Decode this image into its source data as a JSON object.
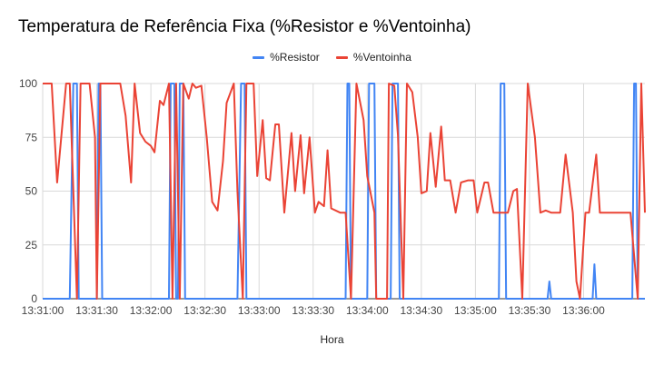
{
  "chart_data": {
    "type": "line",
    "title": "Temperatura de Referência Fixa (%Resistor e %Ventoinha)",
    "xlabel": "Hora",
    "ylabel": "",
    "ylim": [
      0,
      100
    ],
    "yticks": [
      0,
      25,
      50,
      75,
      100
    ],
    "xlim": [
      0,
      334
    ],
    "xticks": [
      {
        "t": 0,
        "label": "13:31:00"
      },
      {
        "t": 30,
        "label": "13:31:30"
      },
      {
        "t": 60,
        "label": "13:32:00"
      },
      {
        "t": 90,
        "label": "13:32:30"
      },
      {
        "t": 120,
        "label": "13:33:00"
      },
      {
        "t": 150,
        "label": "13:33:30"
      },
      {
        "t": 180,
        "label": "13:34:00"
      },
      {
        "t": 210,
        "label": "13:34:30"
      },
      {
        "t": 240,
        "label": "13:35:00"
      },
      {
        "t": 270,
        "label": "13:35:30"
      },
      {
        "t": 300,
        "label": "13:36:00"
      }
    ],
    "grid": true,
    "legend_position": "top",
    "series": [
      {
        "name": "%Resistor",
        "color": "#4285f4",
        "points": [
          [
            0,
            0
          ],
          [
            15,
            0
          ],
          [
            17,
            100
          ],
          [
            19,
            100
          ],
          [
            20,
            0
          ],
          [
            30,
            0
          ],
          [
            31,
            100
          ],
          [
            32,
            100
          ],
          [
            33,
            0
          ],
          [
            70,
            0
          ],
          [
            71,
            100
          ],
          [
            73,
            100
          ],
          [
            74,
            0
          ],
          [
            75,
            0
          ],
          [
            76,
            100
          ],
          [
            78,
            100
          ],
          [
            79,
            0
          ],
          [
            108,
            0
          ],
          [
            110,
            100
          ],
          [
            112,
            100
          ],
          [
            113,
            0
          ],
          [
            168,
            0
          ],
          [
            169,
            100
          ],
          [
            170,
            100
          ],
          [
            171,
            0
          ],
          [
            180,
            0
          ],
          [
            181,
            100
          ],
          [
            184,
            100
          ],
          [
            185,
            0
          ],
          [
            193,
            0
          ],
          [
            194,
            100
          ],
          [
            197,
            100
          ],
          [
            198,
            0
          ],
          [
            253,
            0
          ],
          [
            254,
            100
          ],
          [
            256,
            100
          ],
          [
            257,
            0
          ],
          [
            280,
            0
          ],
          [
            281,
            8
          ],
          [
            282,
            0
          ],
          [
            305,
            0
          ],
          [
            306,
            16
          ],
          [
            307,
            0
          ],
          [
            327,
            0
          ],
          [
            328,
            100
          ],
          [
            329,
            100
          ],
          [
            330,
            0
          ],
          [
            334,
            0
          ]
        ]
      },
      {
        "name": "%Ventoinha",
        "color": "#ea4335",
        "points": [
          [
            0,
            100
          ],
          [
            5,
            100
          ],
          [
            8,
            54
          ],
          [
            13,
            100
          ],
          [
            15,
            100
          ],
          [
            19,
            0
          ],
          [
            21,
            100
          ],
          [
            26,
            100
          ],
          [
            29,
            75
          ],
          [
            30,
            0
          ],
          [
            32,
            100
          ],
          [
            43,
            100
          ],
          [
            46,
            85
          ],
          [
            49,
            54
          ],
          [
            51,
            100
          ],
          [
            54,
            77
          ],
          [
            57,
            73
          ],
          [
            60,
            71
          ],
          [
            62,
            68
          ],
          [
            65,
            92
          ],
          [
            67,
            90
          ],
          [
            70,
            100
          ],
          [
            72,
            0
          ],
          [
            74,
            100
          ],
          [
            76,
            0
          ],
          [
            78,
            100
          ],
          [
            81,
            93
          ],
          [
            83,
            100
          ],
          [
            85,
            98
          ],
          [
            88,
            99
          ],
          [
            91,
            75
          ],
          [
            94,
            45
          ],
          [
            97,
            41
          ],
          [
            100,
            64
          ],
          [
            102,
            91
          ],
          [
            106,
            100
          ],
          [
            108,
            50
          ],
          [
            111,
            0
          ],
          [
            113,
            100
          ],
          [
            117,
            100
          ],
          [
            119,
            57
          ],
          [
            122,
            83
          ],
          [
            124,
            56
          ],
          [
            126,
            55
          ],
          [
            129,
            81
          ],
          [
            131,
            81
          ],
          [
            134,
            40
          ],
          [
            138,
            77
          ],
          [
            140,
            50
          ],
          [
            143,
            76
          ],
          [
            145,
            49
          ],
          [
            148,
            75
          ],
          [
            151,
            40
          ],
          [
            153,
            45
          ],
          [
            156,
            43
          ],
          [
            158,
            69
          ],
          [
            160,
            42
          ],
          [
            165,
            40
          ],
          [
            168,
            40
          ],
          [
            171,
            0
          ],
          [
            174,
            100
          ],
          [
            178,
            83
          ],
          [
            180,
            57
          ],
          [
            184,
            40
          ],
          [
            185,
            0
          ],
          [
            188,
            0
          ],
          [
            191,
            0
          ],
          [
            192,
            100
          ],
          [
            195,
            99
          ],
          [
            197,
            76
          ],
          [
            200,
            0
          ],
          [
            202,
            100
          ],
          [
            205,
            96
          ],
          [
            208,
            75
          ],
          [
            210,
            49
          ],
          [
            213,
            50
          ],
          [
            215,
            77
          ],
          [
            218,
            52
          ],
          [
            221,
            80
          ],
          [
            223,
            55
          ],
          [
            226,
            55
          ],
          [
            229,
            40
          ],
          [
            232,
            54
          ],
          [
            236,
            55
          ],
          [
            239,
            55
          ],
          [
            241,
            40
          ],
          [
            245,
            54
          ],
          [
            247,
            54
          ],
          [
            250,
            40
          ],
          [
            255,
            40
          ],
          [
            258,
            40
          ],
          [
            261,
            50
          ],
          [
            263,
            51
          ],
          [
            266,
            0
          ],
          [
            269,
            100
          ],
          [
            273,
            75
          ],
          [
            276,
            40
          ],
          [
            279,
            41
          ],
          [
            282,
            40
          ],
          [
            284,
            40
          ],
          [
            287,
            40
          ],
          [
            290,
            67
          ],
          [
            294,
            40
          ],
          [
            296,
            8
          ],
          [
            298,
            0
          ],
          [
            301,
            40
          ],
          [
            303,
            40
          ],
          [
            307,
            67
          ],
          [
            309,
            40
          ],
          [
            312,
            40
          ],
          [
            315,
            40
          ],
          [
            318,
            40
          ],
          [
            322,
            40
          ],
          [
            326,
            40
          ],
          [
            330,
            0
          ],
          [
            332,
            100
          ],
          [
            334,
            40
          ]
        ]
      }
    ]
  }
}
